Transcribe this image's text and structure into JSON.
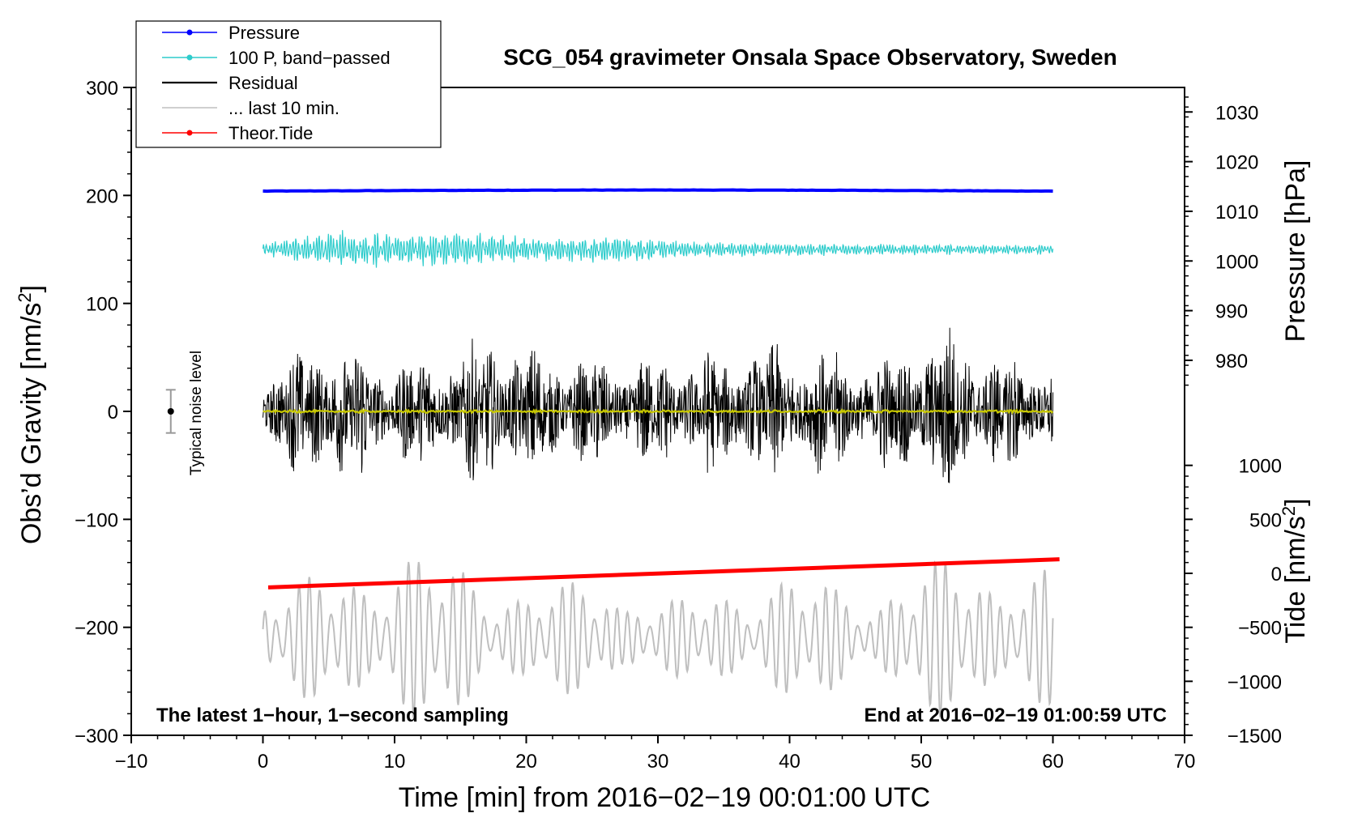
{
  "chart_data": {
    "type": "line",
    "title": "SCG_054 gravimeter Onsala Space Observatory, Sweden",
    "xlabel": "Time [min] from 2016−02−19 00:01:00 UTC",
    "ylabel_left": "Obs’d Gravity [nm/s",
    "ylabel_right_top": "Pressure [hPa]",
    "ylabel_right_bottom": "Tide [nm/s",
    "unit_superscript": "2",
    "unit_close": "]",
    "xlim": [
      -10,
      70
    ],
    "ylim": [
      -300,
      300
    ],
    "x_ticks": [
      -10,
      0,
      10,
      20,
      30,
      40,
      50,
      60,
      70
    ],
    "x_tick_labels": [
      "−10",
      "0",
      "10",
      "20",
      "30",
      "40",
      "50",
      "60",
      "70"
    ],
    "y_ticks": [
      -300,
      -200,
      -100,
      0,
      100,
      200,
      300
    ],
    "y_tick_labels": [
      "−300",
      "−200",
      "−100",
      "0",
      "100",
      "200",
      "300"
    ],
    "pressure_axis": {
      "ticks": [
        980,
        990,
        1000,
        1010,
        1020,
        1030
      ],
      "tick_labels": [
        "980",
        "990",
        "1000",
        "1010",
        "1020",
        "1030"
      ],
      "gravity_at_1000": 139.3,
      "gravity_per_hpa": 4.6
    },
    "tide_axis": {
      "ticks": [
        -1500,
        -1000,
        -500,
        0,
        500,
        1000
      ],
      "tick_labels": [
        "−1500",
        "−1000",
        "−500",
        "0",
        "500",
        "1000"
      ],
      "gravity_at_0": -150,
      "gravity_per_unit": 0.1
    },
    "legend": [
      {
        "label": "Pressure",
        "color": "#0000ff",
        "marker": true
      },
      {
        "label": "100 P, band−passed",
        "color": "#2ecccc",
        "marker": true
      },
      {
        "label": "Residual",
        "color": "#000000",
        "marker": false
      },
      {
        "label": "... last 10 min.",
        "color": "#bfbfbf",
        "marker": false
      },
      {
        "label": "Theor.Tide",
        "color": "#ff0000",
        "marker": true
      }
    ],
    "series": [
      {
        "name": "Pressure",
        "color": "#0000ff",
        "x_range": [
          0,
          60
        ],
        "start": 204,
        "end": 204,
        "peak": 205,
        "kind": "flat"
      },
      {
        "name": "100 P, band−passed",
        "color": "#2ecccc",
        "x_range": [
          0,
          60
        ],
        "center": 150,
        "envelope": [
          [
            0,
            6
          ],
          [
            6,
            16
          ],
          [
            10,
            14
          ],
          [
            15,
            15
          ],
          [
            22,
            10
          ],
          [
            27,
            12
          ],
          [
            35,
            6
          ],
          [
            45,
            5
          ],
          [
            60,
            4
          ]
        ],
        "kind": "oscillation"
      },
      {
        "name": "Residual",
        "color": "#000000",
        "x_range": [
          0,
          60
        ],
        "center": 0,
        "envelope": [
          [
            0,
            45
          ],
          [
            5,
            80
          ],
          [
            10,
            50
          ],
          [
            17,
            75
          ],
          [
            24,
            55
          ],
          [
            30,
            55
          ],
          [
            40,
            70
          ],
          [
            47,
            55
          ],
          [
            52,
            90
          ],
          [
            55,
            60
          ],
          [
            60,
            55
          ]
        ],
        "kind": "noise"
      },
      {
        "name": "Residual (smoothed)",
        "color": "#c8c800",
        "x_range": [
          0,
          60
        ],
        "center": 0,
        "envelope": [
          [
            0,
            1.5
          ],
          [
            60,
            1.5
          ]
        ],
        "kind": "noise"
      },
      {
        "name": "... last 10 min.",
        "color": "#bfbfbf",
        "x_range": [
          0,
          60
        ],
        "center": -210,
        "envelope": [
          [
            0,
            40
          ],
          [
            10,
            75
          ],
          [
            14,
            70
          ],
          [
            20,
            40
          ],
          [
            26,
            55
          ],
          [
            30,
            30
          ],
          [
            40,
            55
          ],
          [
            46,
            40
          ],
          [
            52,
            70
          ],
          [
            60,
            60
          ]
        ],
        "kind": "oscillation"
      },
      {
        "name": "Theor.Tide",
        "color": "#ff0000",
        "x_range": [
          0.4,
          60.5
        ],
        "start": -163,
        "end": -137,
        "kind": "linear"
      }
    ],
    "noise_bar": {
      "x": -7,
      "y": 0,
      "err": 20,
      "label": "Typical noise level"
    },
    "annotations": {
      "left": "The latest 1−hour, 1−second sampling",
      "right": "End at 2016−02−19 01:00:59 UTC"
    }
  }
}
